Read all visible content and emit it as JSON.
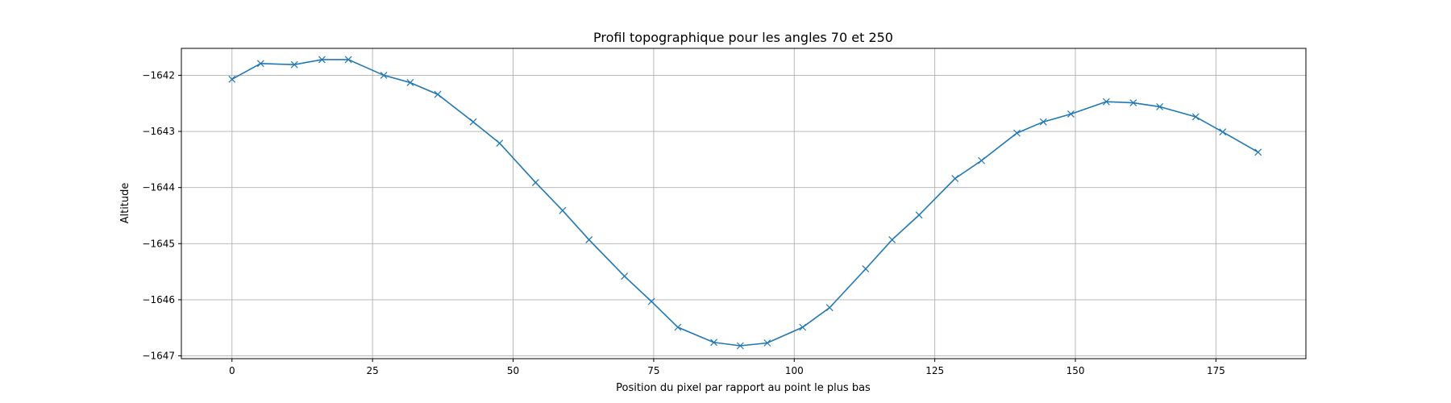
{
  "chart_data": {
    "type": "line",
    "title": "Profil topographique pour les angles 70 et 250",
    "xlabel": "Position du pixel par rapport au point le plus bas",
    "ylabel": "Altitude",
    "xlim": [
      -9,
      191
    ],
    "ylim": [
      -1647.05,
      -1641.52
    ],
    "xticks": [
      0,
      25,
      50,
      75,
      100,
      125,
      150,
      175
    ],
    "xtick_labels": [
      "0",
      "25",
      "50",
      "75",
      "100",
      "125",
      "150",
      "175"
    ],
    "yticks": [
      -1642,
      -1643,
      -1644,
      -1645,
      -1646,
      -1647
    ],
    "ytick_labels": [
      "−1642",
      "−1643",
      "−1644",
      "−1645",
      "−1646",
      "−1647"
    ],
    "grid": true,
    "marker": "x",
    "color": "#1f77b4",
    "series": [
      {
        "x": [
          0,
          5.1,
          11.1,
          16.0,
          20.7,
          27.0,
          31.7,
          36.6,
          42.9,
          47.6,
          54.0,
          58.8,
          63.5,
          69.8,
          74.6,
          79.3,
          85.7,
          90.4,
          95.2,
          101.5,
          106.3,
          112.7,
          117.4,
          122.2,
          128.6,
          133.3,
          139.6,
          144.3,
          149.2,
          155.5,
          160.3,
          165.0,
          171.4,
          176.2,
          182.5
        ],
        "y": [
          -1642.07,
          -1641.79,
          -1641.81,
          -1641.72,
          -1641.72,
          -1642.0,
          -1642.13,
          -1642.34,
          -1642.83,
          -1643.21,
          -1643.91,
          -1644.41,
          -1644.93,
          -1645.58,
          -1646.03,
          -1646.49,
          -1646.76,
          -1646.82,
          -1646.77,
          -1646.49,
          -1646.14,
          -1645.45,
          -1644.93,
          -1644.49,
          -1643.84,
          -1643.52,
          -1643.03,
          -1642.83,
          -1642.69,
          -1642.47,
          -1642.49,
          -1642.56,
          -1642.74,
          -1643.01,
          -1643.37
        ]
      }
    ]
  }
}
